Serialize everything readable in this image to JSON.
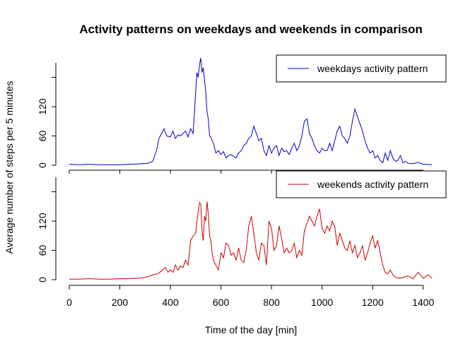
{
  "chart_data": {
    "type": "line",
    "title": "Activity patterns on weekdays and weekends in comparison",
    "xlabel": "Time of the day [min]",
    "ylabel": "Average number of steps per 5 minutes",
    "xlim": [
      0,
      1440
    ],
    "x_ticks": [
      "0",
      "200",
      "400",
      "600",
      "800",
      "1000",
      "1200",
      "1400"
    ],
    "grid": false,
    "panels": [
      {
        "name": "weekdays",
        "legend": "weekdays activity pattern",
        "legend_position": "top-right",
        "color": "#0000CC",
        "ylim": [
          0,
          230
        ],
        "y_ticks": [
          "0",
          "60",
          "120"
        ],
        "x": [
          0,
          40,
          80,
          120,
          160,
          200,
          240,
          280,
          310,
          330,
          345,
          355,
          365,
          375,
          385,
          400,
          410,
          420,
          430,
          440,
          450,
          460,
          470,
          480,
          490,
          500,
          505,
          510,
          515,
          520,
          525,
          530,
          535,
          540,
          545,
          550,
          555,
          560,
          565,
          570,
          580,
          590,
          600,
          610,
          620,
          630,
          640,
          650,
          660,
          670,
          680,
          690,
          700,
          710,
          720,
          730,
          740,
          750,
          760,
          770,
          780,
          790,
          800,
          810,
          820,
          830,
          840,
          850,
          860,
          870,
          880,
          890,
          900,
          910,
          920,
          930,
          940,
          950,
          960,
          970,
          980,
          990,
          1000,
          1010,
          1020,
          1030,
          1040,
          1050,
          1060,
          1070,
          1080,
          1090,
          1100,
          1110,
          1120,
          1130,
          1140,
          1150,
          1160,
          1170,
          1180,
          1190,
          1200,
          1210,
          1220,
          1230,
          1240,
          1250,
          1260,
          1270,
          1280,
          1290,
          1300,
          1310,
          1320,
          1330,
          1340,
          1360,
          1380,
          1400,
          1420,
          1435
        ],
        "y": [
          2,
          1,
          2,
          1,
          1,
          1,
          2,
          3,
          4,
          8,
          30,
          55,
          65,
          75,
          60,
          58,
          70,
          55,
          62,
          60,
          65,
          70,
          58,
          75,
          65,
          150,
          190,
          180,
          205,
          220,
          190,
          200,
          175,
          150,
          110,
          95,
          60,
          58,
          50,
          45,
          25,
          30,
          22,
          28,
          15,
          20,
          22,
          18,
          15,
          25,
          30,
          40,
          45,
          55,
          60,
          80,
          65,
          50,
          55,
          30,
          20,
          40,
          25,
          35,
          40,
          20,
          35,
          28,
          30,
          22,
          35,
          45,
          30,
          40,
          60,
          90,
          95,
          65,
          55,
          40,
          30,
          25,
          35,
          30,
          30,
          45,
          30,
          50,
          70,
          80,
          60,
          55,
          45,
          60,
          90,
          115,
          100,
          85,
          70,
          50,
          35,
          25,
          30,
          15,
          20,
          10,
          5,
          25,
          10,
          30,
          15,
          8,
          10,
          20,
          5,
          8,
          4,
          3,
          6,
          2,
          2,
          1
        ]
      },
      {
        "name": "weekends",
        "legend": "weekends activity pattern",
        "legend_position": "top-right",
        "color": "#CC0000",
        "ylim": [
          0,
          230
        ],
        "y_ticks": [
          "0",
          "60",
          "120"
        ],
        "x": [
          0,
          40,
          80,
          120,
          160,
          200,
          240,
          280,
          310,
          330,
          350,
          370,
          380,
          390,
          400,
          410,
          420,
          430,
          440,
          450,
          460,
          470,
          480,
          490,
          500,
          510,
          515,
          520,
          525,
          530,
          535,
          540,
          545,
          550,
          555,
          560,
          565,
          570,
          580,
          590,
          600,
          610,
          620,
          630,
          640,
          650,
          660,
          670,
          680,
          690,
          700,
          710,
          720,
          730,
          740,
          750,
          760,
          770,
          780,
          790,
          800,
          810,
          820,
          830,
          840,
          850,
          860,
          870,
          880,
          890,
          900,
          910,
          920,
          930,
          940,
          950,
          960,
          970,
          980,
          990,
          1000,
          1010,
          1020,
          1030,
          1040,
          1050,
          1060,
          1070,
          1080,
          1090,
          1100,
          1110,
          1120,
          1130,
          1140,
          1150,
          1160,
          1170,
          1180,
          1190,
          1200,
          1210,
          1220,
          1230,
          1240,
          1250,
          1260,
          1270,
          1280,
          1290,
          1300,
          1320,
          1340,
          1360,
          1380,
          1400,
          1420,
          1435
        ],
        "y": [
          1,
          1,
          2,
          1,
          1,
          2,
          2,
          3,
          6,
          10,
          12,
          20,
          25,
          15,
          20,
          15,
          30,
          20,
          28,
          25,
          40,
          30,
          80,
          90,
          95,
          140,
          158,
          155,
          100,
          80,
          130,
          120,
          160,
          135,
          90,
          80,
          55,
          40,
          30,
          20,
          55,
          45,
          75,
          70,
          50,
          55,
          40,
          65,
          40,
          35,
          60,
          110,
          130,
          95,
          55,
          40,
          75,
          70,
          30,
          120,
          105,
          60,
          70,
          110,
          85,
          55,
          65,
          55,
          60,
          75,
          45,
          60,
          50,
          100,
          115,
          130,
          120,
          110,
          130,
          145,
          105,
          95,
          110,
          100,
          120,
          110,
          70,
          95,
          80,
          65,
          60,
          80,
          55,
          70,
          45,
          55,
          70,
          40,
          55,
          75,
          90,
          65,
          80,
          55,
          30,
          15,
          12,
          20,
          10,
          5,
          3,
          4,
          8,
          2,
          15,
          3,
          10,
          3
        ]
      }
    ]
  }
}
